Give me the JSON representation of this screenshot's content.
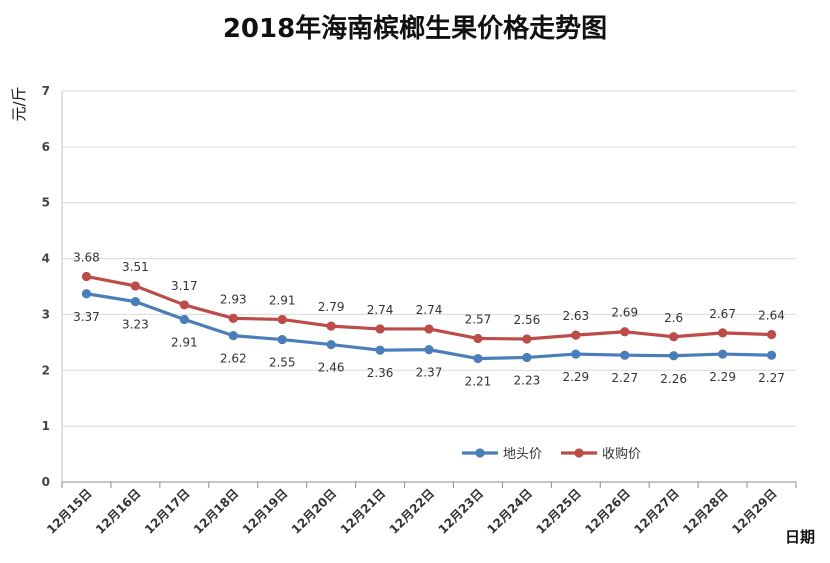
{
  "chart_data": {
    "type": "line",
    "title": "2018年海南槟榔生果价格走势图",
    "ylabel": "元/斤",
    "xlabel": "日期",
    "ylim": [
      0,
      7
    ],
    "yticks": [
      0,
      1,
      2,
      3,
      4,
      5,
      6,
      7
    ],
    "grid": true,
    "legend_position": "bottom-right",
    "categories": [
      "12月15日",
      "12月16日",
      "12月17日",
      "12月18日",
      "12月19日",
      "12月20日",
      "12月21日",
      "12月22日",
      "12月23日",
      "12月24日",
      "12月25日",
      "12月26日",
      "12月27日",
      "12月28日",
      "12月29日"
    ],
    "series": [
      {
        "name": "地头价",
        "color": "#4a7ebb",
        "values": [
          3.37,
          3.23,
          2.91,
          2.62,
          2.55,
          2.46,
          2.36,
          2.37,
          2.21,
          2.23,
          2.29,
          2.27,
          2.26,
          2.29,
          2.27
        ],
        "label_position": "below"
      },
      {
        "name": "收购价",
        "color": "#be4b48",
        "values": [
          3.68,
          3.51,
          3.17,
          2.93,
          2.91,
          2.79,
          2.74,
          2.74,
          2.57,
          2.56,
          2.63,
          2.69,
          2.6,
          2.67,
          2.64
        ],
        "label_position": "above"
      }
    ]
  }
}
